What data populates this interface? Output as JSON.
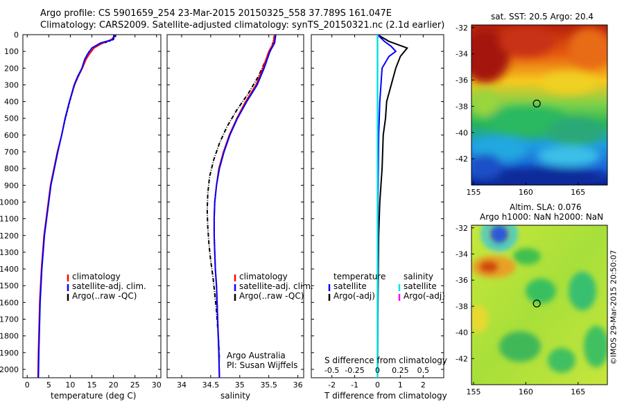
{
  "header": {
    "line1": "Argo profile: CS 5901659_254 23-Mar-2015 20150325_558 37.789S 161.047E",
    "line2": "Climatology: CARS2009. Satellite-adjusted climatology: synTS_20150321.nc (2.1d earlier)"
  },
  "credit": "©IMOS 29-Mar-2015 20:50:07",
  "colors": {
    "climatology": "#ff0000",
    "satellite": "#0000ff",
    "argo": "#000000",
    "sat_salinity": "#00e5e5",
    "argo_salinity": "#ff00ff"
  },
  "chart_data": [
    {
      "type": "line",
      "panel": "temperature",
      "xlabel": "temperature (deg C)",
      "xlim": [
        -1,
        31
      ],
      "ylim": [
        2050,
        0
      ],
      "xticks": [
        "0",
        "5",
        "10",
        "15",
        "20",
        "25",
        "30"
      ],
      "yticks": [
        "0",
        "100",
        "200",
        "300",
        "400",
        "500",
        "600",
        "700",
        "800",
        "900",
        "1000",
        "1100",
        "1200",
        "1300",
        "1400",
        "1500",
        "1600",
        "1700",
        "1800",
        "1900",
        "2000"
      ],
      "legend": [
        "climatology",
        "satellite-adj. clim.",
        "Argo(..raw -QC)"
      ],
      "series": [
        {
          "name": "climatology",
          "x": [
            20.5,
            19.5,
            17.5,
            15.5,
            14.3,
            13.6,
            12.8,
            11.8,
            11.0,
            9.8,
            8.8,
            8.0,
            7.0,
            6.2,
            5.4,
            4.9,
            4.4,
            3.9,
            3.6,
            3.3,
            3.1,
            2.9,
            2.8,
            2.7,
            2.6,
            2.5
          ],
          "y": [
            0,
            30,
            50,
            80,
            120,
            150,
            200,
            250,
            300,
            400,
            500,
            600,
            700,
            800,
            900,
            1000,
            1100,
            1200,
            1300,
            1400,
            1500,
            1600,
            1700,
            1800,
            1900,
            2050
          ]
        },
        {
          "name": "satellite-adj. clim.",
          "x": [
            20.4,
            19.8,
            17.0,
            15.0,
            13.9,
            13.3,
            12.7,
            11.7,
            10.9,
            9.8,
            8.8,
            8.0,
            7.1,
            6.3,
            5.5,
            5.0,
            4.5,
            4.0,
            3.7,
            3.4,
            3.2,
            3.0,
            2.9,
            2.8,
            2.7,
            2.6
          ],
          "y": [
            0,
            30,
            50,
            80,
            120,
            150,
            200,
            250,
            300,
            400,
            500,
            600,
            700,
            800,
            900,
            1000,
            1100,
            1200,
            1300,
            1400,
            1500,
            1600,
            1700,
            1800,
            1900,
            2050
          ]
        },
        {
          "name": "Argo(..raw -QC)",
          "x": [
            20.6,
            20.5,
            20.0,
            18.5,
            16.5,
            15.2,
            14.3,
            13.5,
            12.8,
            11.9,
            11.0,
            9.9,
            8.9,
            8.0,
            7.1,
            6.3,
            5.5,
            5.0,
            4.5,
            4.0,
            3.7,
            3.4,
            3.2,
            3.0,
            2.9,
            2.8,
            2.7,
            2.6
          ],
          "y": [
            0,
            10,
            30,
            45,
            60,
            80,
            100,
            150,
            200,
            250,
            300,
            400,
            500,
            600,
            700,
            800,
            900,
            1000,
            1100,
            1200,
            1300,
            1400,
            1500,
            1600,
            1700,
            1800,
            1900,
            2050
          ]
        }
      ]
    },
    {
      "type": "line",
      "panel": "salinity",
      "xlabel": "salinity",
      "xlim": [
        33.75,
        36.1
      ],
      "ylim": [
        2050,
        0
      ],
      "xticks": [
        "34",
        "34.5",
        "35",
        "35.5",
        "36"
      ],
      "legend": [
        "climatology",
        "satellite-adj. clim.",
        "Argo(..raw -QC)"
      ],
      "annotation": [
        "Argo Australia",
        "PI: Susan Wijffels"
      ],
      "series": [
        {
          "name": "climatology",
          "x": [
            35.6,
            35.58,
            35.5,
            35.4,
            35.28,
            35.1,
            34.95,
            34.82,
            34.72,
            34.64,
            34.6,
            34.57,
            34.56,
            34.56,
            34.57,
            34.58,
            34.6,
            34.61,
            34.62,
            34.63,
            34.64,
            34.65
          ],
          "y": [
            0,
            50,
            100,
            200,
            300,
            400,
            500,
            600,
            700,
            800,
            900,
            1000,
            1100,
            1200,
            1300,
            1400,
            1500,
            1600,
            1700,
            1800,
            1900,
            2050
          ]
        },
        {
          "name": "satellite-adj. clim.",
          "x": [
            35.62,
            35.6,
            35.52,
            35.42,
            35.3,
            35.12,
            34.96,
            34.83,
            34.73,
            34.65,
            34.6,
            34.57,
            34.56,
            34.56,
            34.57,
            34.58,
            34.6,
            34.61,
            34.62,
            34.63,
            34.64,
            34.65
          ],
          "y": [
            0,
            50,
            100,
            200,
            300,
            400,
            500,
            600,
            700,
            800,
            900,
            1000,
            1100,
            1200,
            1300,
            1400,
            1500,
            1600,
            1700,
            1800,
            1900,
            2050
          ]
        },
        {
          "name": "Argo(..raw -QC)",
          "x": [
            35.6,
            35.55,
            35.45,
            35.32,
            35.15,
            34.95,
            34.78,
            34.65,
            34.55,
            34.48,
            34.45,
            34.44,
            34.45,
            34.47,
            34.5,
            34.54,
            34.57,
            34.6,
            34.62,
            34.64,
            34.65
          ],
          "y": [
            0,
            80,
            150,
            250,
            350,
            450,
            550,
            650,
            750,
            850,
            950,
            1050,
            1150,
            1250,
            1350,
            1450,
            1550,
            1650,
            1750,
            1850,
            1950
          ]
        }
      ]
    },
    {
      "type": "line",
      "panel": "difference",
      "xlabel": "T difference from climatology",
      "xlabel_top": "S difference from climatology",
      "xlim": [
        -2.9,
        2.9
      ],
      "ylim": [
        2050,
        0
      ],
      "xticks": [
        "-2",
        "-1",
        "0",
        "1",
        "2"
      ],
      "xticks_salinity": [
        "-0.5",
        "-0.25",
        "0",
        "0.25",
        "0.5"
      ],
      "legend_temperature": {
        "title": "temperature",
        "items": [
          "satellite",
          "Argo(-adj)"
        ]
      },
      "legend_salinity": {
        "title": "salinity",
        "items": [
          "satellite",
          "Argo(-adj)"
        ]
      },
      "series": [
        {
          "name": "temperature satellite",
          "x": [
            0,
            0.3,
            0.6,
            0.8,
            0.5,
            0.2,
            0.1,
            0.05,
            0.02,
            0
          ],
          "y": [
            0,
            40,
            70,
            100,
            130,
            200,
            400,
            600,
            1000,
            2050
          ]
        },
        {
          "name": "temperature Argo(-adj)",
          "x": [
            0,
            0.5,
            1.3,
            1.0,
            0.8,
            0.6,
            0.4,
            0.35,
            0.25,
            0.2,
            0.1,
            0.05,
            0.02,
            0
          ],
          "y": [
            0,
            40,
            80,
            130,
            200,
            300,
            400,
            500,
            600,
            800,
            1000,
            1200,
            1600,
            2050
          ]
        },
        {
          "name": "salinity satellite",
          "x": [
            0,
            0,
            0,
            0,
            0
          ],
          "y": [
            0,
            300,
            800,
            1500,
            2050
          ]
        }
      ]
    },
    {
      "type": "heatmap",
      "panel": "sst-map",
      "title": "sat. SST: 20.5 Argo: 20.4",
      "xticks": [
        "155",
        "160",
        "165"
      ],
      "yticks": [
        "-32",
        "-34",
        "-36",
        "-38",
        "-40",
        "-42"
      ],
      "xlim": [
        154.8,
        167.8
      ],
      "ylim": [
        -44,
        -31.8
      ],
      "marker": {
        "lon": 161.047,
        "lat": -37.789
      }
    },
    {
      "type": "heatmap",
      "panel": "sla-map",
      "title": "Altim. SLA: 0.076",
      "subtitle": "Argo h1000: NaN h2000: NaN",
      "xticks": [
        "155",
        "160",
        "165"
      ],
      "yticks": [
        "-32",
        "-34",
        "-36",
        "-38",
        "-40",
        "-42"
      ],
      "xlim": [
        154.8,
        167.8
      ],
      "ylim": [
        -44,
        -31.8
      ],
      "marker": {
        "lon": 161.047,
        "lat": -37.789
      }
    }
  ]
}
